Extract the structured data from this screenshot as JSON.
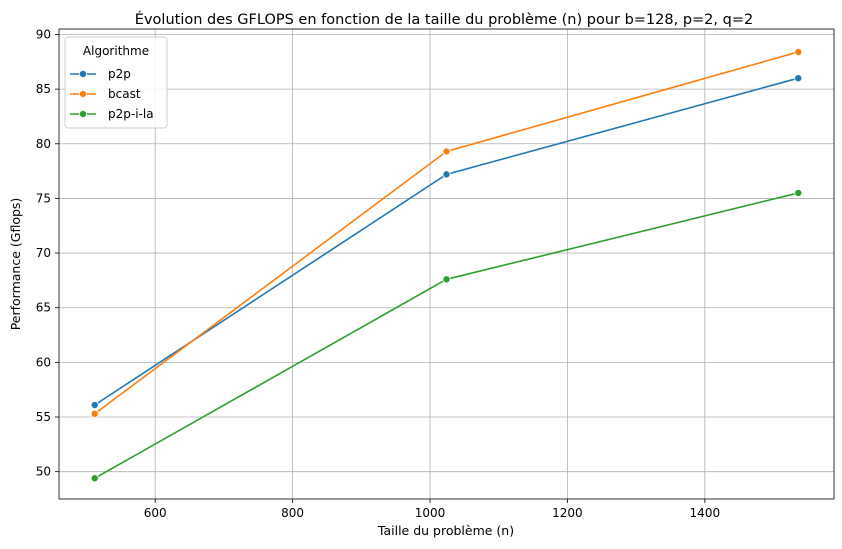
{
  "chart_data": {
    "type": "line",
    "title": "Évolution des GFLOPS en fonction de la taille du problème (n) pour b=128, p=2, q=2",
    "xlabel": "Taille du problème (n)",
    "ylabel": "Performance (Gflops)",
    "x": [
      512,
      1024,
      1536
    ],
    "xlim": [
      460,
      1588
    ],
    "ylim": [
      47.5,
      90.5
    ],
    "xticks": [
      600,
      800,
      1000,
      1200,
      1400
    ],
    "yticks": [
      50,
      55,
      60,
      65,
      70,
      75,
      80,
      85,
      90
    ],
    "grid": true,
    "legend": {
      "title": "Algorithme",
      "placement": "top-left"
    },
    "series": [
      {
        "name": "p2p",
        "color": "#1f77b4",
        "values": [
          56.1,
          77.2,
          86.0
        ]
      },
      {
        "name": "bcast",
        "color": "#ff7f0e",
        "values": [
          55.3,
          79.3,
          88.4
        ]
      },
      {
        "name": "p2p-i-la",
        "color": "#2ca02c",
        "values": [
          49.4,
          67.6,
          75.5
        ]
      }
    ]
  }
}
